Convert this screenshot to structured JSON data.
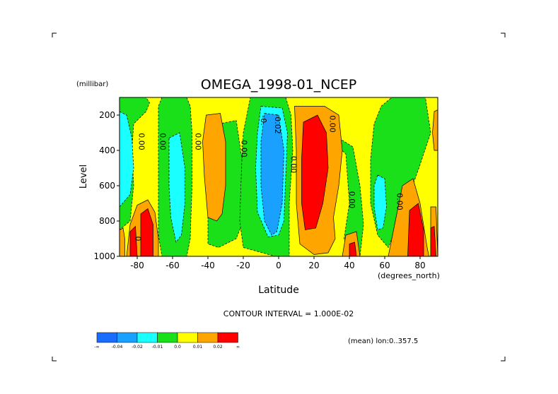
{
  "chart_data": {
    "type": "heatmap",
    "title": "OMEGA_1998-01_NCEP",
    "xlabel": "Latitude",
    "x_unit": "(degrees_north)",
    "ylabel": "Level",
    "y_unit": "(millibar)",
    "xlim": [
      -90,
      90
    ],
    "ylim": [
      1000,
      100
    ],
    "x_ticks": [
      "-80",
      "-60",
      "-40",
      "-20",
      "0",
      "20",
      "40",
      "60",
      "80"
    ],
    "x_tick_values": [
      -80,
      -60,
      -40,
      -20,
      0,
      20,
      40,
      60,
      80
    ],
    "y_ticks": [
      "200",
      "400",
      "600",
      "800",
      "1000"
    ],
    "y_tick_values": [
      200,
      400,
      600,
      800,
      1000
    ],
    "contour_interval_text": "CONTOUR INTERVAL = 1.000E-02",
    "mean_text": "(mean) lon:0..357.5",
    "colorbar": {
      "colors": [
        "#1a6cff",
        "#1aa0ff",
        "#1affff",
        "#1ae01a",
        "#ffff00",
        "#ffa500",
        "#ff0000"
      ],
      "labels": [
        "-∞",
        "-0.04",
        "-0.02",
        "-0.01",
        "0.0",
        "0.01",
        "0.02",
        "∞"
      ]
    },
    "contour_labels": [
      {
        "text": "0.00",
        "lat": -79,
        "lev": 350
      },
      {
        "text": "0.00",
        "lat": -67,
        "lev": 350
      },
      {
        "text": "0.00",
        "lat": -47,
        "lev": 350
      },
      {
        "text": "0.00",
        "lat": -21,
        "lev": 390
      },
      {
        "text": "-0.02",
        "lat": -2,
        "lev": 250
      },
      {
        "text": "-0.",
        "lat": -10,
        "lev": 230
      },
      {
        "text": "0.00",
        "lat": 7,
        "lev": 480
      },
      {
        "text": "0.00",
        "lat": 29,
        "lev": 250
      },
      {
        "text": "0.00",
        "lat": 40,
        "lev": 680
      },
      {
        "text": "0.00",
        "lat": 67,
        "lev": 690
      },
      {
        "text": "0",
        "lat": -81,
        "lev": 900
      }
    ],
    "regions": [
      {
        "value": 0.005,
        "color": "#ffff00",
        "points": [
          [
            -90,
            100
          ],
          [
            90,
            100
          ],
          [
            90,
            1000
          ],
          [
            -90,
            1000
          ]
        ]
      },
      {
        "value": -0.005,
        "color": "#1ae01a",
        "points": [
          [
            -90,
            100
          ],
          [
            -75,
            100
          ],
          [
            -73,
            130
          ],
          [
            -75,
            180
          ],
          [
            -82,
            250
          ],
          [
            -83,
            400
          ],
          [
            -82,
            600
          ],
          [
            -84,
            800
          ],
          [
            -90,
            850
          ]
        ]
      },
      {
        "value": -0.005,
        "color": "#1ae01a",
        "points": [
          [
            -66,
            100
          ],
          [
            -52,
            100
          ],
          [
            -50,
            150
          ],
          [
            -49,
            300
          ],
          [
            -49,
            600
          ],
          [
            -50,
            900
          ],
          [
            -52,
            1000
          ],
          [
            -66,
            1000
          ],
          [
            -68,
            880
          ],
          [
            -68,
            600
          ],
          [
            -68,
            300
          ],
          [
            -68,
            150
          ]
        ]
      },
      {
        "value": -0.005,
        "color": "#1ae01a",
        "points": [
          [
            -34,
            250
          ],
          [
            -24,
            230
          ],
          [
            -20,
            500
          ],
          [
            -20,
            800
          ],
          [
            -24,
            900
          ],
          [
            -34,
            950
          ],
          [
            -40,
            930
          ],
          [
            -40,
            700
          ],
          [
            -38,
            500
          ],
          [
            -36,
            400
          ]
        ]
      },
      {
        "value": -0.005,
        "color": "#1ae01a",
        "points": [
          [
            -16,
            100
          ],
          [
            4,
            100
          ],
          [
            7,
            200
          ],
          [
            8,
            400
          ],
          [
            6,
            700
          ],
          [
            6,
            1000
          ],
          [
            -2,
            1000
          ],
          [
            -20,
            950
          ],
          [
            -22,
            800
          ],
          [
            -21,
            500
          ],
          [
            -20,
            300
          ],
          [
            -18,
            200
          ]
        ]
      },
      {
        "value": -0.005,
        "color": "#1ae01a",
        "points": [
          [
            30,
            350
          ],
          [
            38,
            420
          ],
          [
            40,
            700
          ],
          [
            37,
            900
          ],
          [
            40,
            1000
          ],
          [
            46,
            1000
          ],
          [
            48,
            820
          ],
          [
            46,
            600
          ],
          [
            42,
            380
          ],
          [
            34,
            330
          ]
        ]
      },
      {
        "value": -0.005,
        "color": "#1ae01a",
        "points": [
          [
            64,
            100
          ],
          [
            83,
            100
          ],
          [
            86,
            300
          ],
          [
            80,
            480
          ],
          [
            74,
            650
          ],
          [
            68,
            800
          ],
          [
            62,
            950
          ],
          [
            56,
            880
          ],
          [
            52,
            700
          ],
          [
            52,
            450
          ],
          [
            54,
            250
          ],
          [
            58,
            150
          ]
        ]
      },
      {
        "value": -0.015,
        "color": "#1affff",
        "points": [
          [
            -90,
            180
          ],
          [
            -86,
            200
          ],
          [
            -83,
            330
          ],
          [
            -82,
            500
          ],
          [
            -84,
            650
          ],
          [
            -90,
            720
          ]
        ]
      },
      {
        "value": -0.015,
        "color": "#1affff",
        "points": [
          [
            -62,
            330
          ],
          [
            -56,
            300
          ],
          [
            -53,
            500
          ],
          [
            -53,
            700
          ],
          [
            -55,
            880
          ],
          [
            -58,
            920
          ],
          [
            -61,
            780
          ],
          [
            -62,
            600
          ]
        ]
      },
      {
        "value": -0.015,
        "color": "#1affff",
        "points": [
          [
            -10,
            150
          ],
          [
            2,
            160
          ],
          [
            5,
            300
          ],
          [
            4,
            550
          ],
          [
            3,
            800
          ],
          [
            0,
            880
          ],
          [
            -6,
            890
          ],
          [
            -12,
            750
          ],
          [
            -13,
            500
          ],
          [
            -12,
            300
          ]
        ]
      },
      {
        "value": -0.015,
        "color": "#1affff",
        "points": [
          [
            56,
            540
          ],
          [
            60,
            560
          ],
          [
            61,
            720
          ],
          [
            59,
            840
          ],
          [
            56,
            850
          ],
          [
            54,
            720
          ],
          [
            54,
            600
          ]
        ]
      },
      {
        "value": -0.03,
        "color": "#1aa0ff",
        "points": [
          [
            -8,
            190
          ],
          [
            0,
            200
          ],
          [
            3,
            400
          ],
          [
            2,
            700
          ],
          [
            -1,
            860
          ],
          [
            -4,
            880
          ],
          [
            -8,
            800
          ],
          [
            -10,
            600
          ],
          [
            -10,
            350
          ]
        ]
      },
      {
        "value": 0.015,
        "color": "#ffa500",
        "points": [
          [
            -41,
            200
          ],
          [
            -33,
            190
          ],
          [
            -30,
            350
          ],
          [
            -30,
            600
          ],
          [
            -32,
            760
          ],
          [
            -35,
            800
          ],
          [
            -40,
            780
          ],
          [
            -42,
            550
          ],
          [
            -43,
            350
          ]
        ]
      },
      {
        "value": 0.015,
        "color": "#ffa500",
        "points": [
          [
            9,
            150
          ],
          [
            26,
            150
          ],
          [
            34,
            200
          ],
          [
            36,
            400
          ],
          [
            34,
            600
          ],
          [
            31,
            780
          ],
          [
            32,
            900
          ],
          [
            28,
            980
          ],
          [
            20,
            990
          ],
          [
            12,
            930
          ],
          [
            10,
            700
          ],
          [
            10,
            400
          ]
        ]
      },
      {
        "value": 0.015,
        "color": "#ffa500",
        "points": [
          [
            88,
            180
          ],
          [
            90,
            170
          ],
          [
            90,
            400
          ],
          [
            88,
            400
          ],
          [
            87,
            300
          ]
        ]
      },
      {
        "value": 0.015,
        "color": "#ffa500",
        "points": [
          [
            62,
            1000
          ],
          [
            64,
            900
          ],
          [
            70,
            600
          ],
          [
            76,
            560
          ],
          [
            80,
            700
          ],
          [
            84,
            950
          ],
          [
            85,
            1000
          ]
        ]
      },
      {
        "value": 0.015,
        "color": "#ffa500",
        "points": [
          [
            -86,
            1000
          ],
          [
            -84,
            820
          ],
          [
            -80,
            710
          ],
          [
            -74,
            680
          ],
          [
            -70,
            750
          ],
          [
            -68,
            900
          ],
          [
            -68,
            1000
          ]
        ]
      },
      {
        "value": 0.015,
        "color": "#ffa500",
        "points": [
          [
            -90,
            850
          ],
          [
            -88,
            840
          ],
          [
            -87,
            900
          ],
          [
            -87,
            1000
          ],
          [
            -90,
            1000
          ]
        ]
      },
      {
        "value": 0.015,
        "color": "#ffa500",
        "points": [
          [
            38,
            880
          ],
          [
            44,
            860
          ],
          [
            46,
            1000
          ],
          [
            36,
            1000
          ]
        ]
      },
      {
        "value": 0.015,
        "color": "#ffa500",
        "points": [
          [
            86,
            720
          ],
          [
            89,
            720
          ],
          [
            90,
            1000
          ],
          [
            86,
            1000
          ]
        ]
      },
      {
        "value": 0.025,
        "color": "#ff0000",
        "points": [
          [
            14,
            240
          ],
          [
            22,
            200
          ],
          [
            27,
            300
          ],
          [
            28,
            500
          ],
          [
            25,
            700
          ],
          [
            21,
            840
          ],
          [
            15,
            850
          ],
          [
            13,
            700
          ],
          [
            13,
            450
          ]
        ]
      },
      {
        "value": 0.025,
        "color": "#ff0000",
        "points": [
          [
            -84,
            860
          ],
          [
            -81,
            830
          ],
          [
            -80,
            1000
          ],
          [
            -84,
            1000
          ]
        ]
      },
      {
        "value": 0.025,
        "color": "#ff0000",
        "points": [
          [
            -78,
            760
          ],
          [
            -74,
            730
          ],
          [
            -71,
            820
          ],
          [
            -71,
            1000
          ],
          [
            -78,
            1000
          ]
        ]
      },
      {
        "value": 0.025,
        "color": "#ff0000",
        "points": [
          [
            40,
            930
          ],
          [
            43,
            920
          ],
          [
            44,
            1000
          ],
          [
            40,
            1000
          ]
        ]
      },
      {
        "value": 0.025,
        "color": "#ff0000",
        "points": [
          [
            74,
            740
          ],
          [
            79,
            700
          ],
          [
            82,
            850
          ],
          [
            82,
            1000
          ],
          [
            73,
            1000
          ]
        ]
      },
      {
        "value": 0.025,
        "color": "#ff0000",
        "points": [
          [
            86,
            840
          ],
          [
            88,
            830
          ],
          [
            89,
            1000
          ],
          [
            86,
            1000
          ]
        ]
      }
    ]
  }
}
